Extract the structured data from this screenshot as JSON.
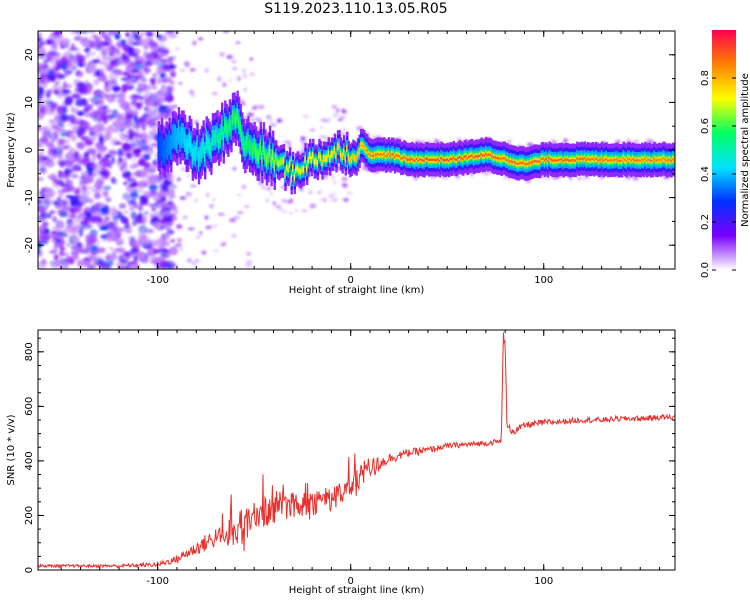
{
  "title": "S119.2023.110.13.05.R05",
  "colors": {
    "snr_line": "#e8302c",
    "axis": "#000000"
  },
  "chart_data": [
    {
      "type": "heatmap",
      "title": "S119.2023.110.13.05.R05",
      "xlabel": "Height of straight line (km)",
      "ylabel": "Frequency (Hz)",
      "xlim": [
        -162,
        168
      ],
      "ylim": [
        -25,
        25
      ],
      "x_ticks": [
        -100,
        0,
        100
      ],
      "y_ticks": [
        -20,
        -10,
        0,
        10,
        20
      ],
      "colorbar": {
        "label": "Normalized spectral amplitude",
        "range": [
          0.0,
          1.0
        ],
        "ticks": [
          0.0,
          0.2,
          0.4,
          0.6,
          0.8
        ],
        "tick_labels": [
          "0.0",
          "0.2",
          "0.4",
          "0.6",
          "0.8"
        ],
        "colormap": [
          "#ffffff",
          "#7a00ff",
          "#0030ff",
          "#00e5ff",
          "#00ff60",
          "#ffff00",
          "#ff8000",
          "#ff0050"
        ]
      },
      "ridge": {
        "x": [
          -100,
          -90,
          -80,
          -70,
          -60,
          -55,
          -50,
          -40,
          -30,
          -25,
          -20,
          -10,
          -5,
          0,
          2,
          5,
          10,
          20,
          30,
          50,
          70,
          80,
          90,
          100,
          120,
          140,
          168
        ],
        "y": [
          0,
          3,
          -1,
          2,
          7,
          1,
          0,
          -2,
          -5,
          -3,
          -2,
          -1,
          0,
          -1,
          -2,
          1,
          -1,
          -1,
          -2,
          -2,
          -1,
          -2,
          -3,
          -2,
          -2,
          -2,
          -2
        ],
        "amplitude": [
          0.3,
          0.4,
          0.45,
          0.5,
          0.6,
          0.55,
          0.6,
          0.65,
          0.7,
          0.7,
          0.72,
          0.75,
          0.75,
          0.78,
          0.75,
          0.8,
          0.85,
          0.88,
          0.9,
          0.92,
          0.9,
          0.88,
          0.88,
          0.9,
          0.88,
          0.85,
          0.85
        ]
      }
    },
    {
      "type": "line",
      "xlabel": "Height of straight line (km)",
      "ylabel": "SNR (10 * v/v)",
      "xlim": [
        -162,
        168
      ],
      "ylim": [
        0,
        880
      ],
      "x_ticks": [
        -100,
        0,
        100
      ],
      "y_ticks": [
        0,
        200,
        400,
        600,
        800
      ],
      "series": [
        {
          "x": [
            -162,
            -140,
            -120,
            -100,
            -90,
            -80,
            -70,
            -60,
            -50,
            -40,
            -30,
            -20,
            -10,
            0,
            5,
            10,
            15,
            20,
            30,
            40,
            50,
            60,
            70,
            75,
            78,
            79,
            80,
            81,
            85,
            90,
            100,
            110,
            120,
            130,
            140,
            150,
            160,
            168
          ],
          "y": [
            15,
            15,
            15,
            20,
            40,
            80,
            120,
            150,
            190,
            230,
            240,
            250,
            260,
            300,
            340,
            360,
            390,
            410,
            430,
            440,
            455,
            460,
            465,
            470,
            470,
            860,
            820,
            520,
            510,
            530,
            540,
            545,
            550,
            550,
            555,
            555,
            560,
            560
          ],
          "noise": [
            5,
            5,
            6,
            8,
            15,
            25,
            40,
            55,
            65,
            60,
            55,
            50,
            45,
            35,
            60,
            50,
            25,
            20,
            15,
            12,
            10,
            10,
            10,
            10,
            10,
            20,
            20,
            15,
            15,
            12,
            12,
            10,
            10,
            10,
            10,
            10,
            10,
            10
          ]
        }
      ]
    }
  ]
}
